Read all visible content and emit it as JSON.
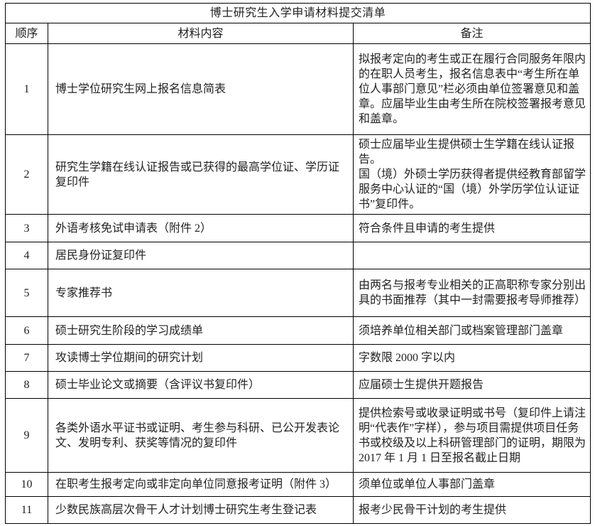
{
  "table": {
    "title": "博士研究生入学申请材料提交清单",
    "headers": {
      "no": "顺序",
      "material": "材料内容",
      "note": "备注"
    },
    "rows": [
      {
        "no": "1",
        "material": "博士学位研究生网上报名信息简表",
        "note": "拟报考定向的考生或正在履行合同服务年限内的在职人员考生，报名信息表中“考生所在单位人事部门意见”栏必须由单位签署意见和盖章。应届毕业生由考生所在院校签署报考意见和盖章。"
      },
      {
        "no": "2",
        "material": "研究生学籍在线认证报告或已获得的最高学位证、学历证复印件",
        "note": "硕士应届毕业生提供硕士生学籍在线认证报告。\n国（境）外硕士学历获得者提供经教育部留学服务中心认证的“国（境）外学历学位认证证书”复印件。"
      },
      {
        "no": "3",
        "material": "外语考核免试申请表（附件 2）",
        "note": "符合条件且申请的考生提供"
      },
      {
        "no": "4",
        "material": "居民身份证复印件",
        "note": ""
      },
      {
        "no": "5",
        "material": "专家推荐书",
        "note": "由两名与报考专业相关的正高职称专家分别出具的书面推荐（其中一封需要报考导师推荐）"
      },
      {
        "no": "6",
        "material": "硕士研究生阶段的学习成绩单",
        "note": "须培养单位相关部门或档案管理部门盖章"
      },
      {
        "no": "7",
        "material": "攻读博士学位期间的研究计划",
        "note": "字数限 2000 字以内"
      },
      {
        "no": "8",
        "material": "硕士毕业论文或摘要（含评议书复印件）",
        "note": "应届硕士生提供开题报告"
      },
      {
        "no": "9",
        "material": "各类外语水平证书或证明、考生参与科研、已公开发表论文、发明专利、获奖等情况的复印件",
        "note": "提供检索号或收录证明或书号（复印件上请注明“代表作”字样），参与项目需提供项目任务书或校级及以上科研管理部门的证明，期限为 2017 年 1 月 1 日至报名截止日期"
      },
      {
        "no": "10",
        "material": "在职考生报考定向或非定向单位同意报考证明（附件 3）",
        "note": "须单位或单位人事部门盖章"
      },
      {
        "no": "11",
        "material": "少数民族高层次骨干人才计划博士研究生考生登记表",
        "note": "报考少民骨干计划的考生提供"
      }
    ]
  }
}
